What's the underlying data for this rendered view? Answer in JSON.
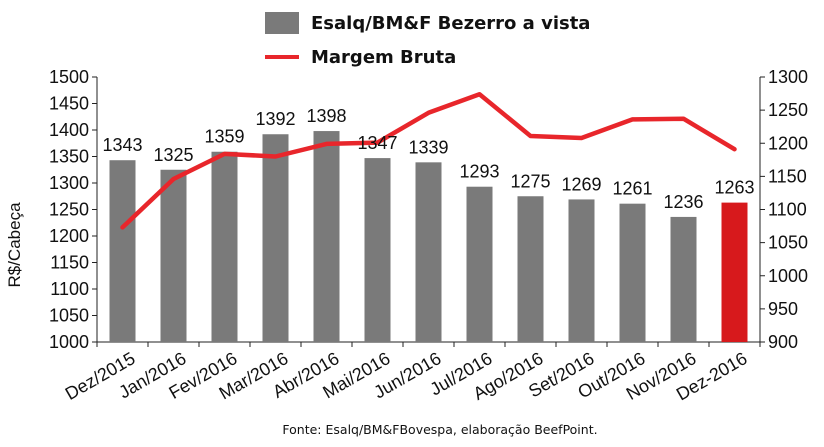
{
  "chart_data": {
    "type": "bar",
    "categories": [
      "Dez/2015",
      "Jan/2016",
      "Fev/2016",
      "Mar/2016",
      "Abr/2016",
      "Mai/2016",
      "Jun/2016",
      "Jul/2016",
      "Ago/2016",
      "Set/2016",
      "Out/2016",
      "Nov/2016",
      "Dez-2016"
    ],
    "series": [
      {
        "name": "Esalq/BM&F Bezerro a vista",
        "type": "bar",
        "axis": "left",
        "values": [
          1343,
          1325,
          1359,
          1392,
          1398,
          1347,
          1339,
          1293,
          1275,
          1269,
          1261,
          1236,
          1263
        ],
        "labels": [
          "1343",
          "1325",
          "1359",
          "1392",
          "1398",
          "1347",
          "1339",
          "1293",
          "1275",
          "1269",
          "1261",
          "1236",
          "1263"
        ],
        "color": "#7a7a7a",
        "highlight_last_color": "#d7191c"
      },
      {
        "name": "Margem Bruta",
        "type": "line",
        "axis": "right",
        "values": [
          1073,
          1146,
          1184,
          1180,
          1199,
          1201,
          1246,
          1274,
          1211,
          1208,
          1236,
          1237,
          1191
        ],
        "color": "#e8262b"
      }
    ],
    "ylabel": "R$/Cabeça",
    "ylim": [
      1000,
      1500
    ],
    "yticks": [
      "1000",
      "1050",
      "1100",
      "1150",
      "1200",
      "1250",
      "1300",
      "1350",
      "1400",
      "1450",
      "1500"
    ],
    "y2lim": [
      900,
      1300
    ],
    "y2ticks": [
      "900",
      "950",
      "1000",
      "1050",
      "1100",
      "1150",
      "1200",
      "1250",
      "1300"
    ],
    "legend_position": "top",
    "grid": false
  },
  "source_note": "Fonte:  Esalq/BM&FBovespa,  elaboração  BeefPoint."
}
